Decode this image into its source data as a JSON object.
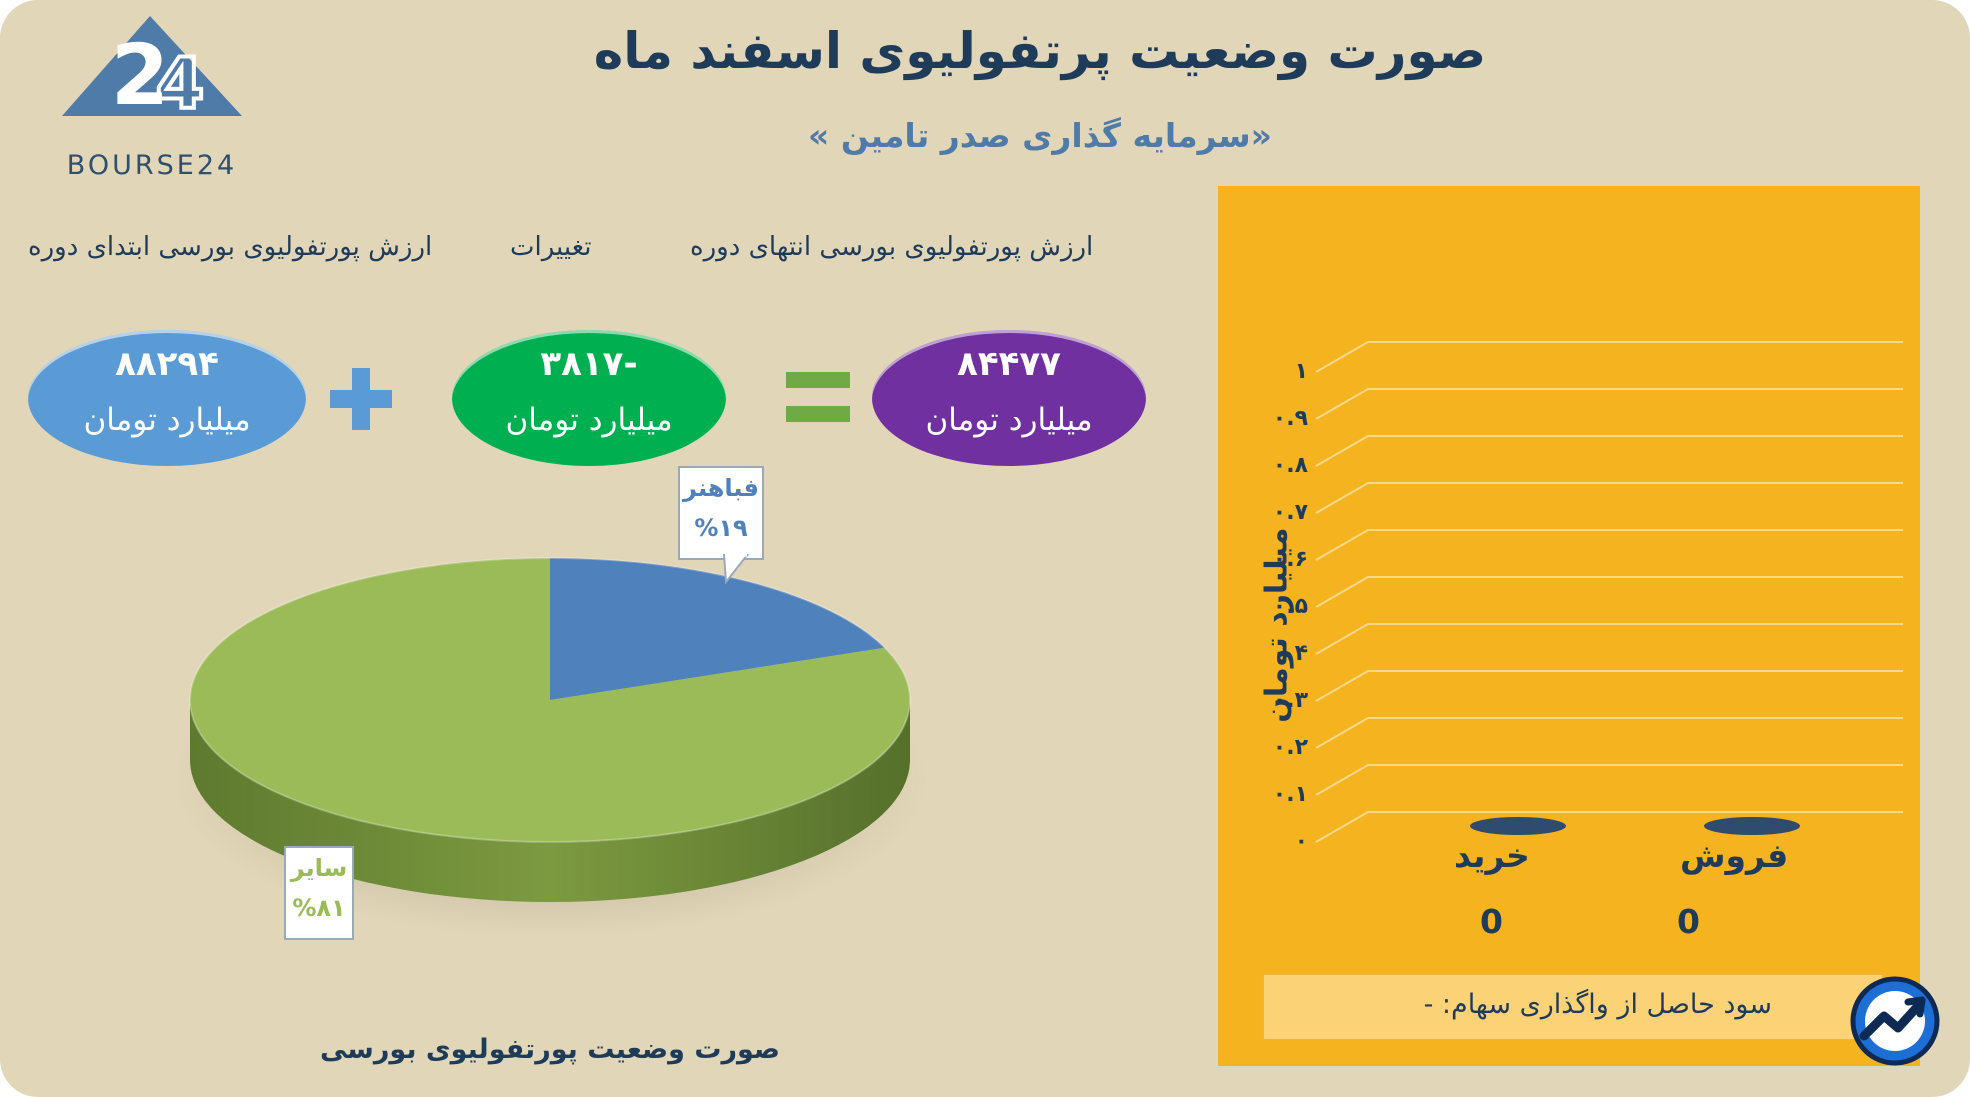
{
  "header": {
    "title": "صورت وضعیت پرتفولیوی اسفند ماه",
    "subtitle": "«سرمایه گذاری صدر تامین »"
  },
  "logo": {
    "text": "BOURSE24",
    "mark": "24"
  },
  "summary": {
    "end_label": "ارزش پورتفولیوی بورسی انتهای دوره",
    "change_label": "تغییرات",
    "start_label": "ارزش پورتفولیوی بورسی ابتدای دوره",
    "end_value": "۸۴۴۷۷",
    "change_value": "-۳۸۱۷",
    "start_value": "۸۸۲۹۴",
    "unit": "میلیارد تومان",
    "colors": {
      "end": "#7030a0",
      "change": "#00b050",
      "start": "#5b9bd5",
      "operator_plus": "#5b9bd5",
      "operator_equals": "#6faa46"
    }
  },
  "chart_data": [
    {
      "type": "pie",
      "title": "صورت وضعیت پورتفولیوی بورسی",
      "slices": [
        {
          "label": "فباهنر",
          "value": 19,
          "value_text": "%۱۹",
          "color": "#4f81bd"
        },
        {
          "label": "سایر",
          "value": 81,
          "value_text": "%۸۱",
          "color": "#9bbb59"
        }
      ]
    },
    {
      "type": "bar",
      "categories": [
        "خرید",
        "فروش"
      ],
      "values": [
        0,
        0
      ],
      "value_labels": [
        "0",
        "0"
      ],
      "ylabel": "میلیارد تومان",
      "ylim": [
        0,
        1
      ],
      "yticks": [
        "۰",
        "۰.۱",
        "۰.۲",
        "۰.۳",
        "۰.۴",
        "۰.۵",
        "۰.۶",
        "۰.۷",
        "۰.۸",
        "۰.۹",
        "۱"
      ],
      "grid": true,
      "colors": {
        "background": "#f5b31f",
        "bar": "#2f4b6e"
      }
    }
  ],
  "footer": {
    "profit_text": "سود حاصل از واگذاری سهام: -"
  }
}
